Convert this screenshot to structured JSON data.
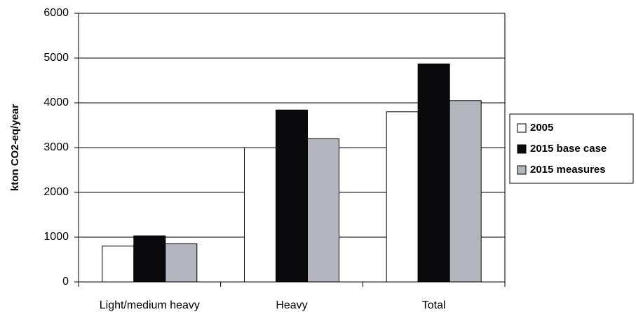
{
  "chart_data": {
    "type": "bar",
    "y_label": "kton CO2-eq/year",
    "categories": [
      "Light/medium heavy",
      "Heavy",
      "Total"
    ],
    "series": [
      {
        "name": "2005",
        "color": "#ffffff",
        "values": [
          800,
          3000,
          3800
        ]
      },
      {
        "name": "2015 base case",
        "color": "#0a0a0d",
        "values": [
          1030,
          3840,
          4870
        ]
      },
      {
        "name": "2015 measures",
        "color": "#b3b7bd",
        "values": [
          850,
          3200,
          4050
        ]
      }
    ],
    "ylim": [
      0,
      6000
    ],
    "yticks": [
      0,
      1000,
      2000,
      3000,
      4000,
      5000,
      6000
    ],
    "grid": true,
    "legend_position": "right"
  }
}
